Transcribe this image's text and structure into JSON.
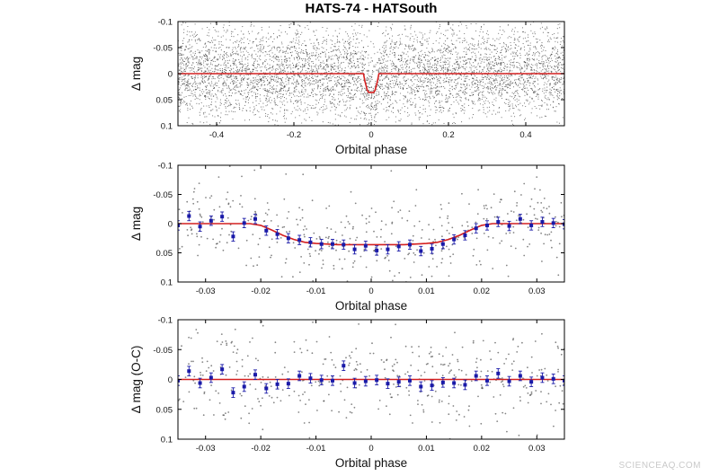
{
  "figure_title": "HATS-74 - HATSouth",
  "watermark": "SCIENCEAQ.COM",
  "colors": {
    "model": "#d42020",
    "binned": "#1a1aa8",
    "raw": "#333333",
    "frame": "#000000"
  },
  "chart_data": [
    {
      "type": "scatter",
      "title": "",
      "xlabel": "Orbital phase",
      "ylabel": "Δ mag",
      "xlim": [
        -0.5,
        0.5
      ],
      "ylim": [
        0.1,
        -0.1
      ],
      "y_inverted": true,
      "xticks": [
        -0.4,
        -0.2,
        0,
        0.2,
        0.4
      ],
      "xtick_labels": [
        "-0.4",
        "-0.2",
        "0",
        "0.2",
        "0.4"
      ],
      "yticks": [
        -0.1,
        -0.05,
        0,
        0.05,
        0.1
      ],
      "ytick_labels": [
        "-0.1",
        "-0.05",
        "0",
        "0.05",
        "0.1"
      ],
      "grid": false,
      "legend": "none",
      "raw_points": {
        "count": 5500,
        "x_range": [
          -0.5,
          0.5
        ],
        "y_center": 0.0,
        "y_scatter_sd": 0.045
      },
      "model": {
        "x": [
          -0.5,
          -0.02,
          -0.016,
          -0.01,
          -0.006,
          0.006,
          0.01,
          0.016,
          0.02,
          0.5
        ],
        "y": [
          0,
          0,
          0.015,
          0.032,
          0.036,
          0.036,
          0.032,
          0.015,
          0,
          0
        ]
      }
    },
    {
      "type": "scatter",
      "title": "",
      "xlabel": "Orbital phase",
      "ylabel": "Δ mag",
      "xlim": [
        -0.035,
        0.035
      ],
      "ylim": [
        0.1,
        -0.1
      ],
      "y_inverted": true,
      "xticks": [
        -0.03,
        -0.02,
        -0.01,
        0,
        0.01,
        0.02,
        0.03
      ],
      "xtick_labels": [
        "-0.03",
        "-0.02",
        "-0.01",
        "0",
        "0.01",
        "0.02",
        "0.03"
      ],
      "yticks": [
        -0.1,
        -0.05,
        0,
        0.05,
        0.1
      ],
      "ytick_labels": [
        "-0.1",
        "-0.05",
        "0",
        "0.05",
        "0.1"
      ],
      "grid": false,
      "legend": "none",
      "raw_points": {
        "count": 420,
        "x_range": [
          -0.035,
          0.035
        ],
        "y_scatter_sd": 0.042
      },
      "model": {
        "x": [
          -0.035,
          -0.022,
          -0.02,
          -0.018,
          -0.016,
          -0.014,
          -0.012,
          -0.01,
          -0.006,
          0,
          0.006,
          0.01,
          0.012,
          0.014,
          0.016,
          0.018,
          0.02,
          0.022,
          0.035
        ],
        "y": [
          0,
          0,
          0.003,
          0.011,
          0.02,
          0.027,
          0.032,
          0.034,
          0.036,
          0.036,
          0.036,
          0.034,
          0.032,
          0.027,
          0.02,
          0.011,
          0.003,
          0,
          0
        ]
      },
      "binned": {
        "x": [
          -0.035,
          -0.033,
          -0.031,
          -0.029,
          -0.027,
          -0.025,
          -0.023,
          -0.021,
          -0.019,
          -0.017,
          -0.015,
          -0.013,
          -0.011,
          -0.009,
          -0.007,
          -0.005,
          -0.003,
          -0.001,
          0.001,
          0.003,
          0.005,
          0.007,
          0.009,
          0.011,
          0.013,
          0.015,
          0.017,
          0.019,
          0.021,
          0.023,
          0.025,
          0.027,
          0.029,
          0.031,
          0.033,
          0.035
        ],
        "y": [
          0.003,
          -0.013,
          0.005,
          -0.005,
          -0.012,
          0.022,
          -0.001,
          -0.008,
          0.012,
          0.018,
          0.025,
          0.028,
          0.032,
          0.035,
          0.035,
          0.036,
          0.044,
          0.038,
          0.046,
          0.044,
          0.039,
          0.036,
          0.047,
          0.043,
          0.035,
          0.027,
          0.02,
          0.008,
          0.003,
          -0.003,
          0.004,
          -0.008,
          0.003,
          -0.003,
          -0.001,
          0.001
        ],
        "err": 0.008
      }
    },
    {
      "type": "scatter",
      "title": "",
      "xlabel": "Orbital phase",
      "ylabel": "Δ mag (O-C)",
      "xlim": [
        -0.035,
        0.035
      ],
      "ylim": [
        0.1,
        -0.1
      ],
      "y_inverted": true,
      "xticks": [
        -0.03,
        -0.02,
        -0.01,
        0,
        0.01,
        0.02,
        0.03
      ],
      "xtick_labels": [
        "-0.03",
        "-0.02",
        "-0.01",
        "0",
        "0.01",
        "0.02",
        "0.03"
      ],
      "yticks": [
        -0.1,
        -0.05,
        0,
        0.05,
        0.1
      ],
      "ytick_labels": [
        "-0.1",
        "-0.05",
        "0",
        "0.05",
        "0.1"
      ],
      "grid": false,
      "legend": "none",
      "raw_points": {
        "count": 420,
        "x_range": [
          -0.035,
          0.035
        ],
        "y_scatter_sd": 0.042
      },
      "model": {
        "x": [
          -0.035,
          0.035
        ],
        "y": [
          0,
          0
        ]
      },
      "binned": {
        "x": [
          -0.035,
          -0.033,
          -0.031,
          -0.029,
          -0.027,
          -0.025,
          -0.023,
          -0.021,
          -0.019,
          -0.017,
          -0.015,
          -0.013,
          -0.011,
          -0.009,
          -0.007,
          -0.005,
          -0.003,
          -0.001,
          0.001,
          0.003,
          0.005,
          0.007,
          0.009,
          0.011,
          0.013,
          0.015,
          0.017,
          0.019,
          0.021,
          0.023,
          0.025,
          0.027,
          0.029,
          0.031,
          0.033,
          0.035
        ],
        "y": [
          0.002,
          -0.014,
          0.006,
          -0.003,
          -0.017,
          0.022,
          0.012,
          -0.008,
          0.015,
          0.008,
          0.007,
          -0.006,
          -0.002,
          0.001,
          0.002,
          -0.023,
          0.006,
          0.003,
          0.001,
          0.007,
          0.004,
          0.002,
          0.012,
          0.01,
          0.005,
          0.006,
          0.009,
          -0.006,
          0.002,
          -0.01,
          0.003,
          -0.006,
          0.004,
          -0.003,
          -0.001,
          0.002
        ],
        "err": 0.008
      }
    }
  ]
}
